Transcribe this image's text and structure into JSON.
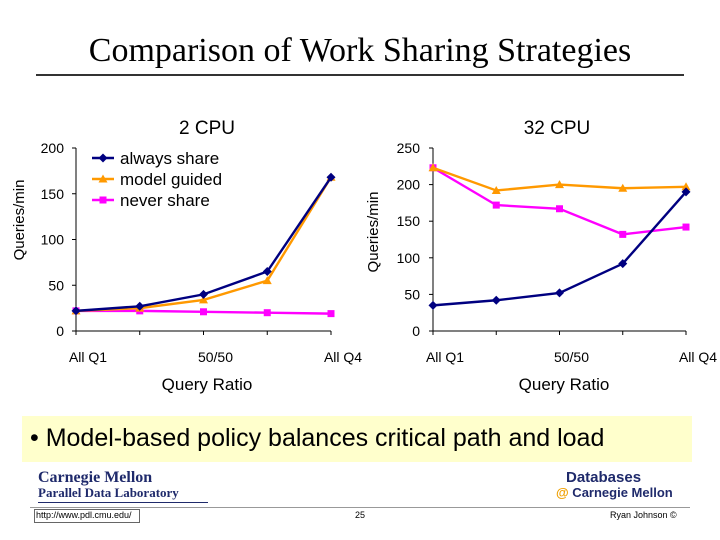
{
  "slide": {
    "title": "Comparison of Work Sharing Strategies",
    "bullet": "• Model-based policy balances critical path and load",
    "logo_left": {
      "line1": "Carnegie Mellon",
      "line2": "Parallel Data Laboratory"
    },
    "logo_right": {
      "line1": "Databases",
      "line2_at": "@",
      "line2": " Carnegie Mellon"
    },
    "footer": {
      "url": "http://www.pdl.cmu.edu/",
      "page": "25",
      "copyright": "Ryan Johnson ©"
    }
  },
  "chart_data": [
    {
      "type": "line",
      "title": "2 CPU",
      "xlabel": "Query Ratio",
      "ylabel": "Queries/min",
      "ylim": [
        0,
        200
      ],
      "yticks": [
        0,
        50,
        100,
        150,
        200
      ],
      "categories": [
        "All Q1",
        "",
        "50/50",
        "",
        "All Q4"
      ],
      "xtick_labels": [
        "All Q1",
        "50/50",
        "All Q4"
      ],
      "legend_position": "top-left",
      "series": [
        {
          "name": "always share",
          "color": "#000080",
          "marker": "diamond",
          "values": [
            22,
            27,
            40,
            65,
            168
          ]
        },
        {
          "name": "model guided",
          "color": "#ff9900",
          "marker": "triangle",
          "values": [
            22,
            25,
            34,
            55,
            168
          ]
        },
        {
          "name": "never share",
          "color": "#ff00ff",
          "marker": "square",
          "values": [
            22,
            22,
            21,
            20,
            19
          ]
        }
      ]
    },
    {
      "type": "line",
      "title": "32 CPU",
      "xlabel": "Query Ratio",
      "ylabel": "Queries/min",
      "ylim": [
        0,
        250
      ],
      "yticks": [
        0,
        50,
        100,
        150,
        200,
        250
      ],
      "categories": [
        "All Q1",
        "",
        "50/50",
        "",
        "All Q4"
      ],
      "xtick_labels": [
        "All Q1",
        "50/50",
        "All Q4"
      ],
      "series": [
        {
          "name": "always share",
          "color": "#000080",
          "marker": "diamond",
          "values": [
            35,
            42,
            52,
            92,
            190
          ]
        },
        {
          "name": "model guided",
          "color": "#ff9900",
          "marker": "triangle",
          "values": [
            223,
            192,
            200,
            195,
            197
          ]
        },
        {
          "name": "never share",
          "color": "#ff00ff",
          "marker": "square",
          "values": [
            223,
            172,
            167,
            132,
            142
          ]
        }
      ]
    }
  ]
}
